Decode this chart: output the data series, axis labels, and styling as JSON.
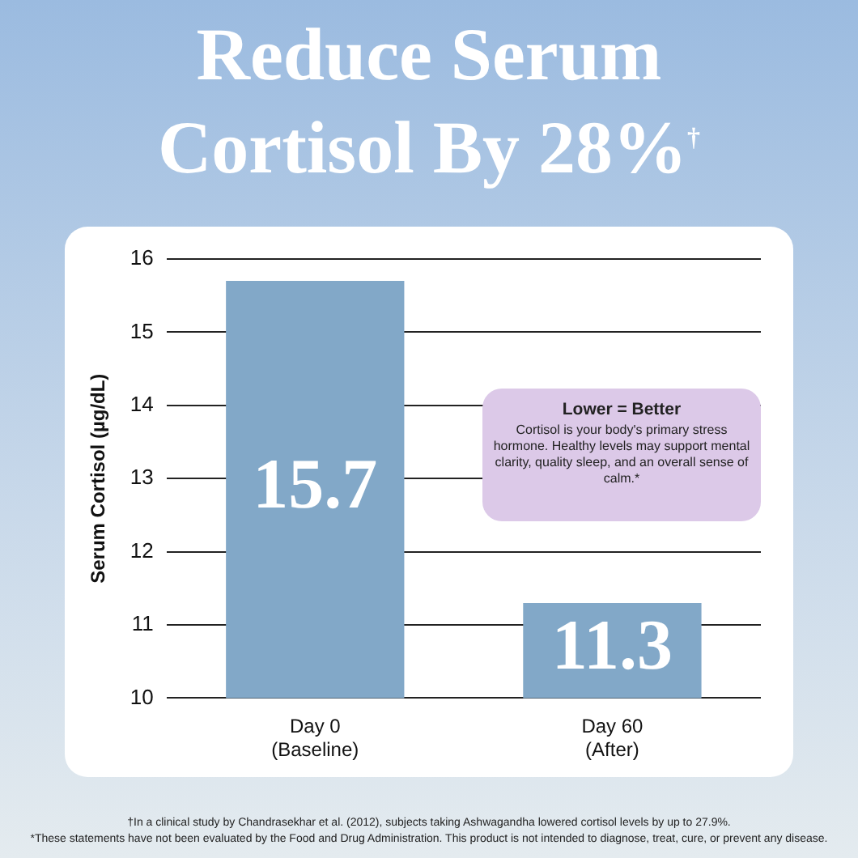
{
  "chart_data": {
    "type": "bar",
    "title": "Reduce Serum Cortisol By 28%$^{†}$",
    "ylabel": "Serum Cortisol (µg/dL)",
    "categories": [
      "Day 0 (Baseline)",
      "Day 60 (After)"
    ],
    "values": [
      15.7,
      11.3
    ],
    "color": "#82a8c8",
    "data_labels": true,
    "ylim": [
      10,
      16
    ],
    "yticks": [
      10,
      11,
      12,
      13,
      14,
      15,
      16
    ],
    "grid": "y",
    "annotations": [
      "Lower = Better",
      "Cortisol is your body's primary stress hormone. Healthy levels may support mental clarity, quality sleep, and an overall sense of calm.*",
      "†In a clinical study by Chandrasekhar et al. (2012), subjects taking Ashwagandha lowered cortisol levels by up to 27.9%.",
      "*These statements have not been evaluated by the Food and Drug Administration. This product is not intended to diagnose, treat, cure, or prevent any disease."
    ]
  }
}
